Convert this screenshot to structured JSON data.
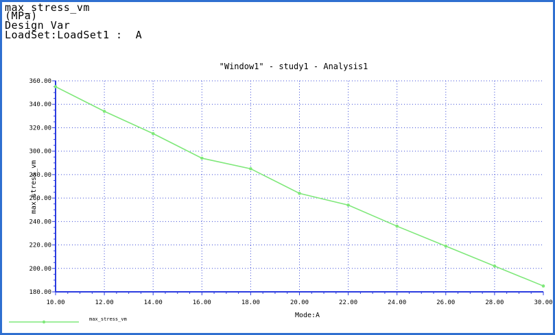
{
  "header": {
    "line1": "max_stress_vm",
    "line2": "(MPa)",
    "line3": "Design Var",
    "line4": "LoadSet:LoadSet1 :  A"
  },
  "colors": {
    "frame_border": "#2f6fd0",
    "axis": "#2a3be0",
    "grid": "#3a4ad8",
    "series": "#7fe87a"
  },
  "chart_data": {
    "type": "line",
    "title": "\"Window1\" - study1 - Analysis1",
    "xlabel": "Mode:A",
    "ylabel": "max_stress_vm",
    "xlim": [
      10,
      30
    ],
    "ylim": [
      180,
      360
    ],
    "xticks": [
      "10.00",
      "12.00",
      "14.00",
      "16.00",
      "18.00",
      "20.00",
      "22.00",
      "24.00",
      "26.00",
      "28.00",
      "30.00"
    ],
    "yticks": [
      "180.00",
      "200.00",
      "220.00",
      "240.00",
      "260.00",
      "280.00",
      "300.00",
      "320.00",
      "340.00",
      "360.00"
    ],
    "grid": true,
    "legend": "bottom-left",
    "series": [
      {
        "name": "max_stress_vm",
        "x": [
          10,
          12,
          14,
          16,
          18,
          20,
          22,
          24,
          26,
          28,
          30
        ],
        "y": [
          355,
          334,
          315,
          294,
          285,
          264,
          254,
          236,
          219,
          202,
          185
        ]
      }
    ]
  }
}
